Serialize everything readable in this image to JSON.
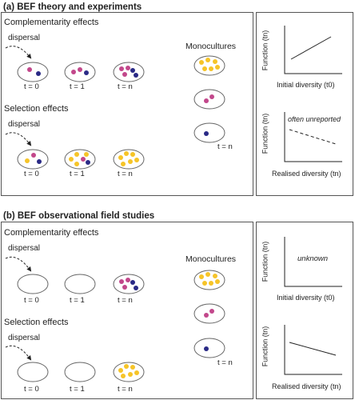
{
  "panel_a": {
    "heading": "(a)   BEF theory and experiments",
    "complementarity_label": "Complementarity effects",
    "selection_label": "Selection effects",
    "dispersal_label": "dispersal",
    "monocultures_label": "Monocultures",
    "time_labels": [
      "t = 0",
      "t = 1",
      "t = n"
    ],
    "mono_time_label": "t = n",
    "graph_top": {
      "ylabel": "Function (tn)",
      "xlabel": "Initial diversity (t0)"
    },
    "graph_bottom": {
      "ylabel": "Function (tn)",
      "xlabel": "Realised diversity (tn)",
      "annotation": "often unreported"
    }
  },
  "panel_b": {
    "heading": "(b)   BEF observational field studies",
    "complementarity_label": "Complementarity effects",
    "selection_label": "Selection effects",
    "dispersal_label": "dispersal",
    "monocultures_label": "Monocultures",
    "time_labels": [
      "t = 0",
      "t = 1",
      "t = n"
    ],
    "mono_time_label": "t = n",
    "unknown_mark": "?",
    "graph_top": {
      "ylabel": "Function (tn)",
      "xlabel": "Initial diversity (t0)",
      "annotation": "unknown"
    },
    "graph_bottom": {
      "ylabel": "Function (tn)",
      "xlabel": "Realised diversity (tn)"
    }
  },
  "colors": {
    "pink": "#c2478b",
    "navy": "#2a2a86",
    "yellow": "#f6c428",
    "outline": "#666666"
  }
}
